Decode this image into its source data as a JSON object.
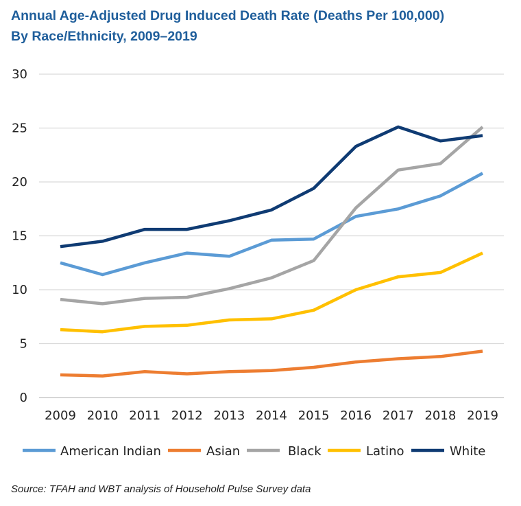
{
  "title_line1": "Annual Age-Adjusted Drug Induced Death Rate (Deaths Per 100,000)",
  "title_line2": "By Race/Ethnicity, 2009–2019",
  "source": "Source: TFAH and WBT analysis of Household Pulse Survey data",
  "chart_data": {
    "type": "line",
    "title": "Annual Age-Adjusted Drug Induced Death Rate (Deaths Per 100,000) By Race/Ethnicity, 2009–2019",
    "xlabel": "",
    "ylabel": "",
    "x": [
      "2009",
      "2010",
      "2011",
      "2012",
      "2013",
      "2014",
      "2015",
      "2016",
      "2017",
      "2018",
      "2019"
    ],
    "ylim": [
      0,
      30
    ],
    "yticks": [
      0,
      5,
      10,
      15,
      20,
      25,
      30
    ],
    "grid": "horizontal",
    "legend_position": "bottom",
    "series": [
      {
        "name": "American Indian",
        "color": "#5b9bd5",
        "values": [
          12.5,
          11.4,
          12.5,
          13.4,
          13.1,
          14.6,
          14.7,
          16.8,
          17.5,
          18.7,
          20.8
        ]
      },
      {
        "name": "Asian",
        "color": "#ed7d31",
        "values": [
          2.1,
          2.0,
          2.4,
          2.2,
          2.4,
          2.5,
          2.8,
          3.3,
          3.6,
          3.8,
          4.3
        ]
      },
      {
        "name": "Black",
        "color": "#a5a5a5",
        "values": [
          9.1,
          8.7,
          9.2,
          9.3,
          10.1,
          11.1,
          12.7,
          17.6,
          21.1,
          21.7,
          25.1
        ]
      },
      {
        "name": "Latino",
        "color": "#ffc000",
        "values": [
          6.3,
          6.1,
          6.6,
          6.7,
          7.2,
          7.3,
          8.1,
          10.0,
          11.2,
          11.6,
          13.4
        ]
      },
      {
        "name": "White",
        "color": "#0f3b73",
        "values": [
          14.0,
          14.5,
          15.6,
          15.6,
          16.4,
          17.4,
          19.4,
          23.3,
          25.1,
          23.8,
          24.3
        ]
      }
    ]
  }
}
